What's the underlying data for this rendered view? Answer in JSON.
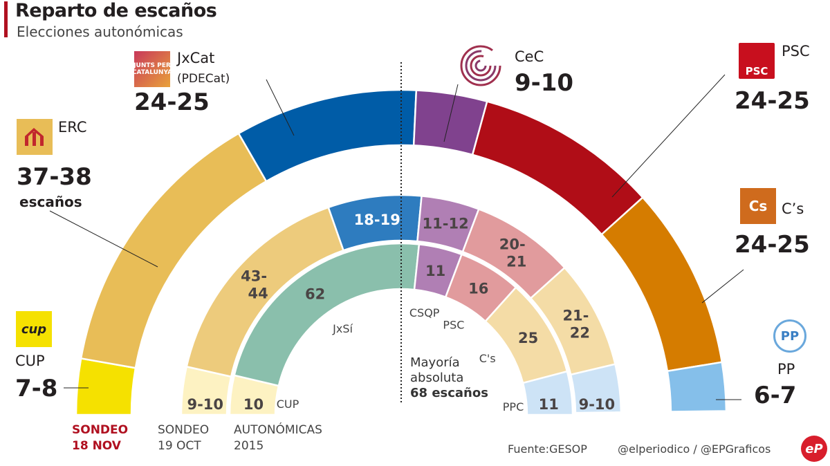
{
  "header": {
    "title": "Reparto de escaños",
    "subtitle": "Elecciones autonómicas"
  },
  "colors": {
    "accent": "#b01020"
  },
  "chart_data": {
    "type": "parliament-semicircle",
    "total_seats": 135,
    "majority": {
      "label_line1": "Mayoría",
      "label_line2": "absoluta",
      "label_line3": "68 escaños",
      "seats": 68
    },
    "rings": [
      {
        "name": "SONDEO 18 NOV",
        "label_line1": "SONDEO",
        "label_line2": "18 NOV",
        "segments": [
          {
            "party": "CUP",
            "label": "7-8",
            "value": 7.5,
            "color": "#f5e100"
          },
          {
            "party": "ERC",
            "label": "37-38",
            "value": 37.5,
            "color": "#e8bd57"
          },
          {
            "party": "JxCat",
            "label": "24-25",
            "value": 24.5,
            "color": "#005ca7"
          },
          {
            "party": "CeC",
            "label": "9-10",
            "value": 9.5,
            "color": "#80428e"
          },
          {
            "party": "PSC",
            "label": "24-25",
            "value": 24.5,
            "color": "#b00d17"
          },
          {
            "party": "C's",
            "label": "24-25",
            "value": 24.5,
            "color": "#d57c00"
          },
          {
            "party": "PP",
            "label": "6-7",
            "value": 6.5,
            "color": "#85bfea"
          }
        ]
      },
      {
        "name": "SONDEO 19 OCT",
        "label_line1": "SONDEO",
        "label_line2": "19 OCT",
        "segments": [
          {
            "party": "CUP",
            "label": "9-10",
            "value": 9.5,
            "color": "#fdf2c2"
          },
          {
            "party": "ERC",
            "label": "43-44",
            "value": 43.5,
            "color": "#edcb7c"
          },
          {
            "party": "JxCat",
            "label": "18-19",
            "value": 18.5,
            "color": "#2e7cbf"
          },
          {
            "party": "CeC",
            "label": "11-12",
            "value": 11.5,
            "color": "#b07fb4"
          },
          {
            "party": "PSC",
            "label": "20-21",
            "value": 20.5,
            "color": "#e19b9d"
          },
          {
            "party": "C's",
            "label": "21-22",
            "value": 21.5,
            "color": "#f4dca6"
          },
          {
            "party": "PP",
            "label": "9-10",
            "value": 9.5,
            "color": "#cde3f6"
          }
        ]
      },
      {
        "name": "AUTONÓMICAS 2015",
        "label_line1": "AUTONÓMICAS",
        "label_line2": "2015",
        "segments": [
          {
            "party": "CUP",
            "label": "10",
            "value": 10,
            "color": "#fdf2c2"
          },
          {
            "party": "JxSí",
            "label": "62",
            "value": 62,
            "color": "#8abfac"
          },
          {
            "party": "CSQP",
            "label": "11",
            "value": 11,
            "color": "#b07fb4"
          },
          {
            "party": "PSC",
            "label": "16",
            "value": 16,
            "color": "#e19b9d"
          },
          {
            "party": "C's",
            "label": "25",
            "value": 25,
            "color": "#f4dca6"
          },
          {
            "party": "PPC",
            "label": "11",
            "value": 11,
            "color": "#cde3f6"
          }
        ]
      }
    ]
  },
  "outer_labels": {
    "erc": {
      "name": "ERC",
      "value": "37-38",
      "unit": "escaños",
      "icon": "erc-logo-icon"
    },
    "jxcat": {
      "name": "JxCat",
      "sub": "(PDECat)",
      "value": "24-25",
      "logo_text": "JUNTS PER CATALUNYA",
      "icon": "jxcat-logo-icon"
    },
    "cec": {
      "name": "CeC",
      "value": "9-10",
      "icon": "cec-logo-icon"
    },
    "psc": {
      "name": "PSC",
      "value": "24-25",
      "logo_text": "PSC",
      "icon": "psc-logo-icon"
    },
    "cs": {
      "name": "C’s",
      "value": "24-25",
      "logo_text": "Cs",
      "icon": "cs-logo-icon"
    },
    "pp": {
      "name": "PP",
      "value": "6-7",
      "logo_text": "PP",
      "icon": "pp-logo-icon"
    },
    "cup": {
      "name": "CUP",
      "value": "7-8",
      "logo_text": "cup",
      "icon": "cup-logo-icon"
    }
  },
  "footer": {
    "source": "Fuente:GESOP",
    "credit": "@elperiodico / @EPGraficos",
    "logo_text": "eP"
  }
}
